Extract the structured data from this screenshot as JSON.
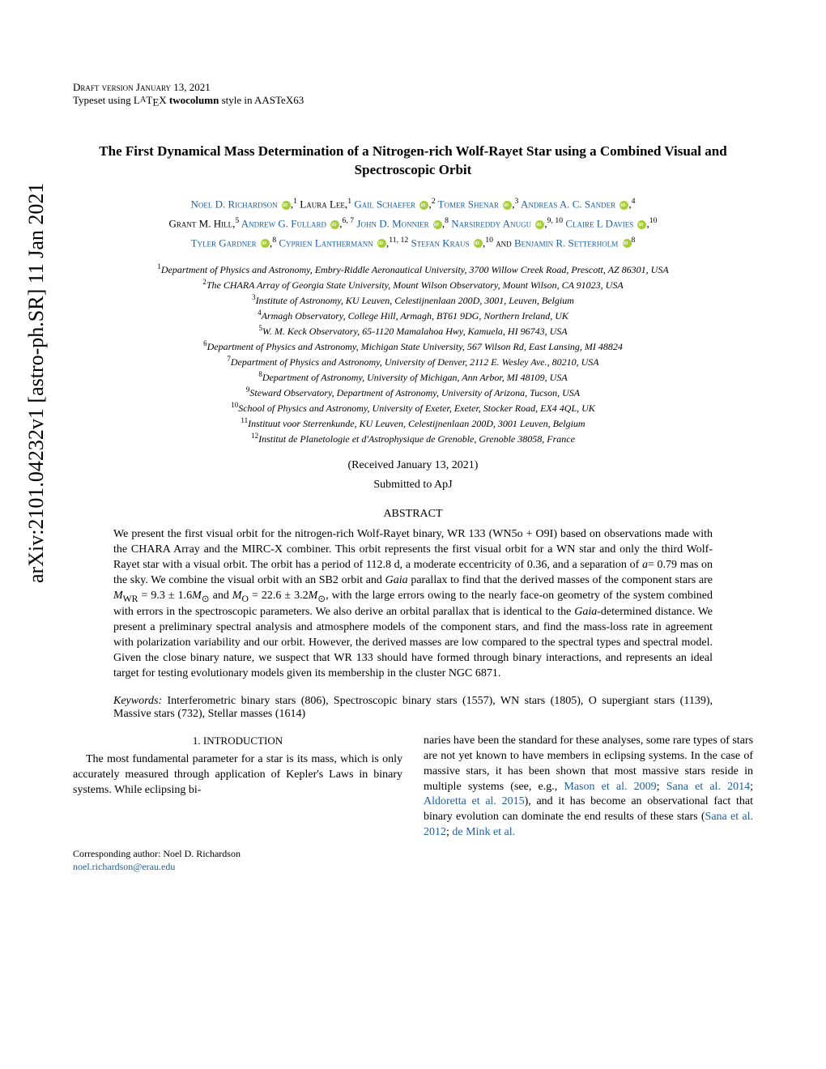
{
  "arxiv_id": "arXiv:2101.04232v1  [astro-ph.SR]  11 Jan 2021",
  "header": {
    "draft": "Draft version January 13, 2021",
    "typeset": "Typeset using LATEX twocolumn style in AASTeX63"
  },
  "title": "The First Dynamical Mass Determination of a Nitrogen-rich Wolf-Rayet Star using a Combined Visual and Spectroscopic Orbit",
  "authors_html": "<a href='#'>Noel D. Richardson</a> <span class='orcid'></span>,<sup>1</sup> Laura Lee,<sup>1</sup> <a href='#'>Gail Schaefer</a> <span class='orcid'></span>,<sup>2</sup> <a href='#'>Tomer Shenar</a> <span class='orcid'></span>,<sup>3</sup> <a href='#'>Andreas A. C. Sander</a> <span class='orcid'></span>,<sup>4</sup><br>Grant M. Hill,<sup>5</sup> <a href='#'>Andrew G. Fullard</a> <span class='orcid'></span>,<sup>6, 7</sup> <a href='#'>John D. Monnier</a> <span class='orcid'></span>,<sup>8</sup> <a href='#'>Narsireddy Anugu</a> <span class='orcid'></span>,<sup>9, 10</sup> <a href='#'>Claire L Davies</a> <span class='orcid'></span>,<sup>10</sup><br><a href='#'>Tyler Gardner</a> <span class='orcid'></span>,<sup>8</sup> <a href='#'>Cyprien Lanthermann</a> <span class='orcid'></span>,<sup>11, 12</sup> <a href='#'>Stefan Kraus</a> <span class='orcid'></span>,<sup>10</sup> and <a href='#'>Benjamin R. Setterholm</a> <span class='orcid'></span><sup>8</sup>",
  "affiliations": [
    "Department of Physics and Astronomy, Embry-Riddle Aeronautical University, 3700 Willow Creek Road, Prescott, AZ 86301, USA",
    "The CHARA Array of Georgia State University, Mount Wilson Observatory, Mount Wilson, CA 91023, USA",
    "Institute of Astronomy, KU Leuven, Celestijnenlaan 200D, 3001, Leuven, Belgium",
    "Armagh Observatory, College Hill, Armagh, BT61 9DG, Northern Ireland, UK",
    "W. M. Keck Observatory, 65-1120 Mamalahoa Hwy, Kamuela, HI 96743, USA",
    "Department of Physics and Astronomy, Michigan State University, 567 Wilson Rd, East Lansing, MI 48824",
    "Department of Physics and Astronomy, University of Denver, 2112 E. Wesley Ave., 80210, USA",
    "Department of Astronomy, University of Michigan, Ann Arbor, MI 48109, USA",
    "Steward Observatory, Department of Astronomy, University of Arizona, Tucson, USA",
    "School of Physics and Astronomy, University of Exeter, Exeter, Stocker Road, EX4 4QL, UK",
    "Instituut voor Sterrenkunde, KU Leuven, Celestijnenlaan 200D, 3001 Leuven, Belgium",
    "Institut de Planetologie et d'Astrophysique de Grenoble, Grenoble 38058, France"
  ],
  "received": "(Received January 13, 2021)",
  "submitted": "Submitted to ApJ",
  "abstract_head": "ABSTRACT",
  "abstract": "We present the first visual orbit for the nitrogen-rich Wolf-Rayet binary, WR 133 (WN5o + O9I) based on observations made with the CHARA Array and the MIRC-X combiner. This orbit represents the first visual orbit for a WN star and only the third Wolf-Rayet star with a visual orbit. The orbit has a period of 112.8 d, a moderate eccentricity of 0.36, and a separation of a= 0.79 mas on the sky. We combine the visual orbit with an SB2 orbit and Gaia parallax to find that the derived masses of the component stars are M_WR = 9.3 ± 1.6M⊙ and M_O = 22.6 ± 3.2M⊙, with the large errors owing to the nearly face-on geometry of the system combined with errors in the spectroscopic parameters. We also derive an orbital parallax that is identical to the Gaia-determined distance. We present a preliminary spectral analysis and atmosphere models of the component stars, and find the mass-loss rate in agreement with polarization variability and our orbit. However, the derived masses are low compared to the spectral types and spectral model. Given the close binary nature, we suspect that WR 133 should have formed through binary interactions, and represents an ideal target for testing evolutionary models given its membership in the cluster NGC 6871.",
  "keywords_label": "Keywords:",
  "keywords": " Interferometric binary stars (806), Spectroscopic binary stars (1557), WN stars (1805), O supergiant stars (1139), Massive stars (732), Stellar masses (1614)",
  "section1_num": "1.",
  "section1_title": "INTRODUCTION",
  "col_left_p1": "The most fundamental parameter for a star is its mass, which is only accurately measured through application of Kepler's Laws in binary systems. While eclipsing bi-",
  "col_right_p1_pre": "naries have been the standard for these analyses, some rare types of stars are not yet known to have members in eclipsing systems. In the case of massive stars, it has been shown that most massive stars reside in multiple systems (see, e.g., ",
  "ref1": "Mason et al. 2009",
  "ref2": "Sana et al. 2014",
  "ref3": "Aldoretta et al. 2015",
  "col_right_p1_mid": "), and it has become an observational fact that binary evolution can dominate the end results of these stars (",
  "ref4": "Sana et al. 2012",
  "ref5": "de Mink et al.",
  "corresponding_label": "Corresponding author: Noel D. Richardson",
  "corresponding_email": "noel.richardson@erau.edu",
  "colors": {
    "link": "#2060a0",
    "orcid": "#a6ce39",
    "text": "#000000",
    "background": "#ffffff"
  },
  "fontsize": {
    "body": 14,
    "title": 17,
    "authors": 13,
    "affil": 12,
    "arxiv": 26
  }
}
